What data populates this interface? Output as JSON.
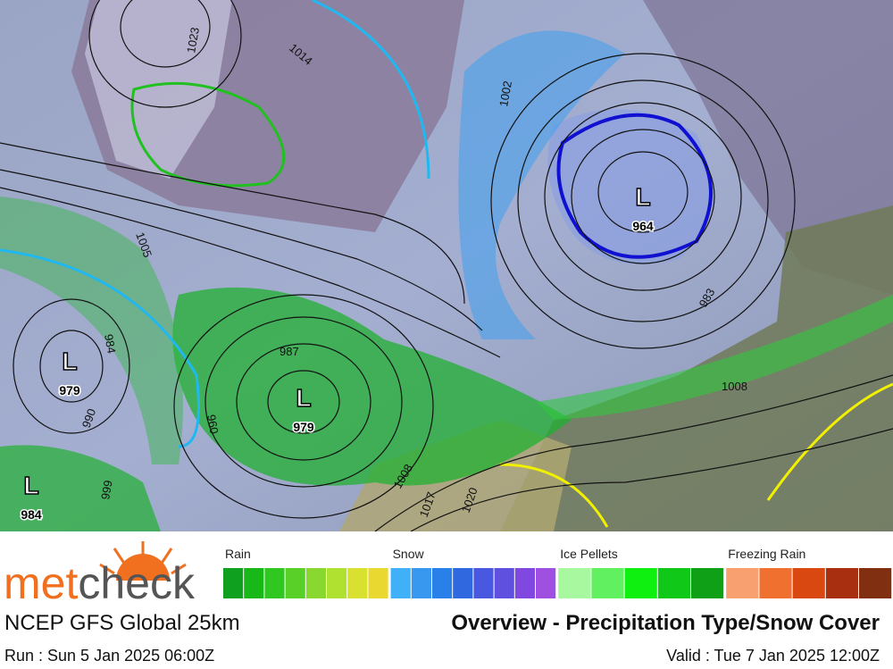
{
  "map": {
    "lows": [
      {
        "symbol": "L",
        "value": "964"
      },
      {
        "symbol": "L",
        "value": "979"
      },
      {
        "symbol": "L",
        "value": "979"
      },
      {
        "symbol": "L",
        "value": "984"
      }
    ],
    "isobar_labels": [
      "1005",
      "987",
      "990",
      "984",
      "1002",
      "1014",
      "1017",
      "1020",
      "1008",
      "999",
      "960",
      "1023",
      "983",
      "1008"
    ]
  },
  "legend": [
    {
      "name": "Rain",
      "colors": [
        "#10a020",
        "#18b818",
        "#30c820",
        "#58d028",
        "#88d830",
        "#b0e030",
        "#d8e030",
        "#e8d830"
      ]
    },
    {
      "name": "Snow",
      "colors": [
        "#40b0f8",
        "#3898f0",
        "#2880e8",
        "#3068e0",
        "#4858e0",
        "#6050e0",
        "#8048e0",
        "#a050e0"
      ]
    },
    {
      "name": "Ice Pellets",
      "colors": [
        "#a8f8a0",
        "#60f060",
        "#10f010",
        "#10c818",
        "#10a018"
      ]
    },
    {
      "name": "Freezing Rain",
      "colors": [
        "#f8a070",
        "#f07030",
        "#d84810",
        "#a83010",
        "#803010"
      ]
    }
  ],
  "logo": {
    "part1": "met",
    "part2": "check"
  },
  "footer": {
    "model": "NCEP GFS Global 25km",
    "title": "Overview - Precipitation Type/Snow Cover",
    "run": "Run : Sun 5 Jan 2025 06:00Z",
    "valid": "Valid : Tue 7 Jan 2025 12:00Z"
  }
}
